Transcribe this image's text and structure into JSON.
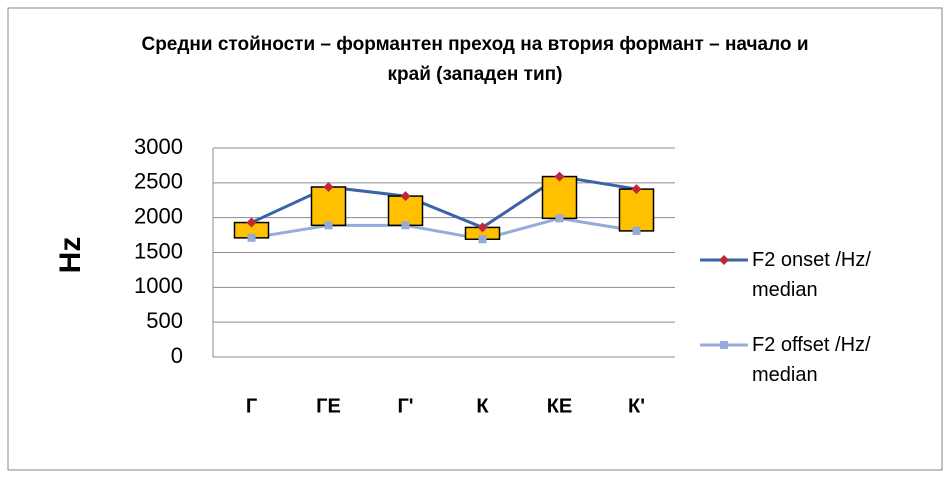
{
  "chart_data": {
    "type": "line",
    "title": "Средни стойности – формантен преход на втория формант – начало и край (западен тип)",
    "ylabel": "Hz",
    "categories": [
      "Г",
      "ГЕ",
      "Г'",
      "К",
      "КЕ",
      "К'"
    ],
    "series": [
      {
        "name": "F2 onset /Hz/ median",
        "color": "#3c63a8",
        "marker": "diamond",
        "marker_color": "#c0283a",
        "values": [
          1930,
          2440,
          2310,
          1860,
          2590,
          2410
        ]
      },
      {
        "name": "F2 offset /Hz/ median",
        "color": "#95abd9",
        "marker": "square",
        "marker_color": "#95abd9",
        "values": [
          1710,
          1890,
          1890,
          1690,
          1990,
          1810
        ]
      }
    ],
    "up_down_bars": true,
    "up_down_bar_color": "#ffc000",
    "ylim": [
      0,
      3000
    ],
    "yticks": [
      0,
      500,
      1000,
      1500,
      2000,
      2500,
      3000
    ],
    "grid": true,
    "legend": "right"
  }
}
